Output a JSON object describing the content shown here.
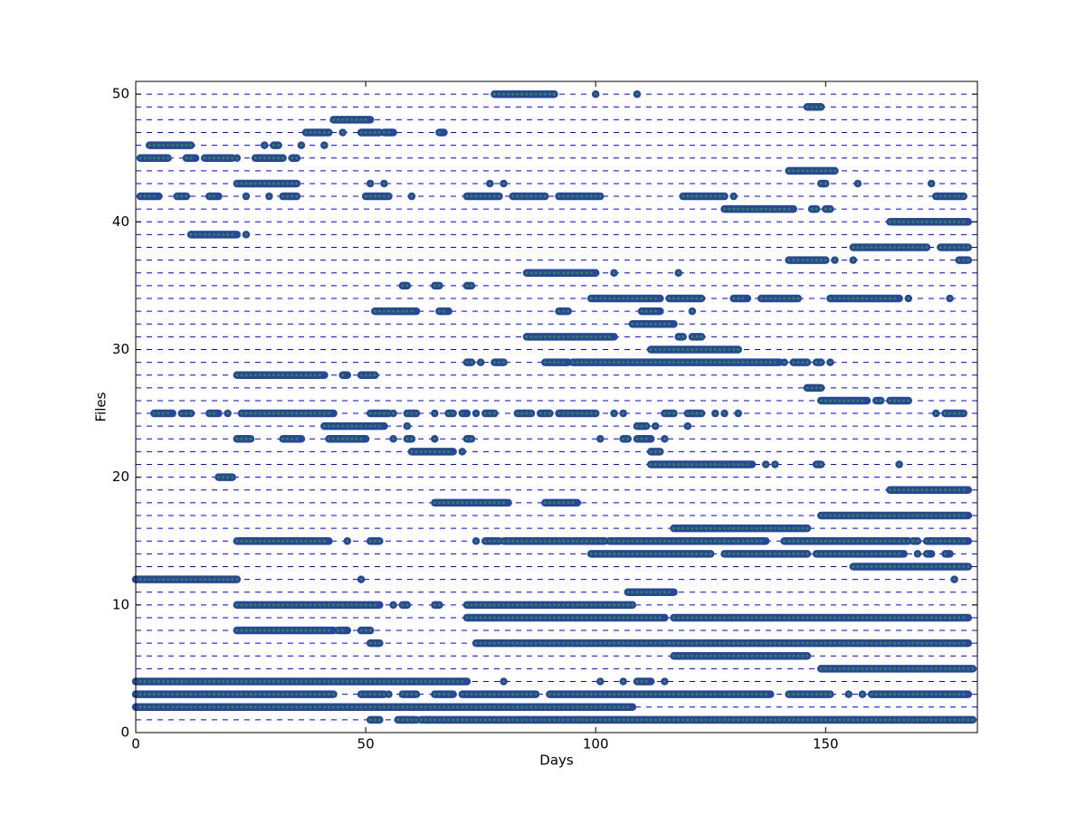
{
  "chart_data": {
    "type": "scatter",
    "xlabel": "Days",
    "ylabel": "Files",
    "xlim": [
      0,
      183
    ],
    "ylim": [
      0,
      51
    ],
    "xticks": [
      0,
      50,
      100,
      150
    ],
    "yticks": [
      0,
      10,
      20,
      30,
      40,
      50
    ],
    "hlines": [
      0,
      1,
      2,
      3,
      4,
      5,
      6,
      7,
      8,
      9,
      10,
      11,
      12,
      13,
      14,
      15,
      16,
      17,
      18,
      19,
      20,
      21,
      22,
      23,
      24,
      25,
      26,
      27,
      28,
      29,
      30,
      31,
      32,
      33,
      34,
      35,
      36,
      37,
      38,
      39,
      40,
      41,
      42,
      43,
      44,
      45,
      46,
      47,
      48,
      49,
      50
    ],
    "line_color": "#0000ff",
    "color": "#27479f",
    "inner_color": "#2e8b3a",
    "rows": [
      {
        "y": 50,
        "runs": [
          [
            78,
            91
          ],
          [
            100,
            100
          ],
          [
            109,
            109
          ]
        ]
      },
      {
        "y": 49,
        "runs": [
          [
            146,
            149
          ]
        ]
      },
      {
        "y": 48,
        "runs": [
          [
            43,
            51
          ]
        ]
      },
      {
        "y": 47,
        "runs": [
          [
            37,
            42
          ],
          [
            45,
            45
          ],
          [
            49,
            53
          ],
          [
            54,
            56
          ],
          [
            66,
            67
          ]
        ]
      },
      {
        "y": 46,
        "runs": [
          [
            3,
            12
          ],
          [
            28,
            28
          ],
          [
            30,
            31
          ],
          [
            36,
            36
          ],
          [
            41,
            41
          ]
        ]
      },
      {
        "y": 45,
        "runs": [
          [
            1,
            7
          ],
          [
            11,
            13
          ],
          [
            15,
            21
          ],
          [
            22,
            22
          ],
          [
            26,
            32
          ],
          [
            34,
            35
          ]
        ]
      },
      {
        "y": 44,
        "runs": [
          [
            142,
            152
          ]
        ]
      },
      {
        "y": 43,
        "runs": [
          [
            22,
            35
          ],
          [
            51,
            51
          ],
          [
            54,
            54
          ],
          [
            77,
            77
          ],
          [
            80,
            80
          ],
          [
            149,
            150
          ],
          [
            157,
            157
          ],
          [
            173,
            173
          ]
        ]
      },
      {
        "y": 42,
        "runs": [
          [
            1,
            5
          ],
          [
            9,
            11
          ],
          [
            16,
            18
          ],
          [
            24,
            24
          ],
          [
            29,
            29
          ],
          [
            32,
            35
          ],
          [
            50,
            55
          ],
          [
            60,
            60
          ],
          [
            72,
            79
          ],
          [
            82,
            89
          ],
          [
            92,
            101
          ],
          [
            119,
            128
          ],
          [
            130,
            130
          ],
          [
            174,
            180
          ]
        ]
      },
      {
        "y": 41,
        "runs": [
          [
            128,
            143
          ],
          [
            147,
            148
          ],
          [
            150,
            151
          ]
        ]
      },
      {
        "y": 40,
        "runs": [
          [
            164,
            181
          ]
        ]
      },
      {
        "y": 39,
        "runs": [
          [
            12,
            22
          ],
          [
            24,
            24
          ]
        ]
      },
      {
        "y": 38,
        "runs": [
          [
            156,
            172
          ],
          [
            175,
            181
          ]
        ]
      },
      {
        "y": 37,
        "runs": [
          [
            142,
            150
          ],
          [
            152,
            152
          ],
          [
            156,
            156
          ],
          [
            179,
            181
          ]
        ]
      },
      {
        "y": 36,
        "runs": [
          [
            85,
            100
          ],
          [
            104,
            104
          ],
          [
            118,
            118
          ]
        ]
      },
      {
        "y": 35,
        "runs": [
          [
            58,
            59
          ],
          [
            65,
            66
          ],
          [
            72,
            73
          ]
        ]
      },
      {
        "y": 34,
        "runs": [
          [
            99,
            114
          ],
          [
            116,
            123
          ],
          [
            130,
            133
          ],
          [
            136,
            144
          ],
          [
            151,
            166
          ],
          [
            168,
            168
          ],
          [
            177,
            177
          ]
        ]
      },
      {
        "y": 33,
        "runs": [
          [
            52,
            61
          ],
          [
            66,
            68
          ],
          [
            92,
            94
          ],
          [
            110,
            114
          ],
          [
            121,
            121
          ]
        ]
      },
      {
        "y": 32,
        "runs": [
          [
            108,
            117
          ]
        ]
      },
      {
        "y": 31,
        "runs": [
          [
            85,
            104
          ],
          [
            118,
            119
          ],
          [
            121,
            123
          ]
        ]
      },
      {
        "y": 30,
        "runs": [
          [
            112,
            131
          ]
        ]
      },
      {
        "y": 29,
        "runs": [
          [
            72,
            73
          ],
          [
            75,
            75
          ],
          [
            78,
            80
          ],
          [
            89,
            94
          ],
          [
            95,
            140
          ],
          [
            141,
            141
          ],
          [
            143,
            146
          ],
          [
            148,
            149
          ],
          [
            151,
            151
          ]
        ]
      },
      {
        "y": 28,
        "runs": [
          [
            22,
            41
          ],
          [
            45,
            46
          ],
          [
            49,
            52
          ]
        ]
      },
      {
        "y": 27,
        "runs": [
          [
            146,
            149
          ]
        ]
      },
      {
        "y": 26,
        "runs": [
          [
            149,
            159
          ],
          [
            161,
            162
          ],
          [
            164,
            168
          ]
        ]
      },
      {
        "y": 25,
        "runs": [
          [
            4,
            8
          ],
          [
            10,
            12
          ],
          [
            16,
            18
          ],
          [
            20,
            20
          ],
          [
            23,
            43
          ],
          [
            51,
            55
          ],
          [
            56,
            56
          ],
          [
            59,
            61
          ],
          [
            65,
            65
          ],
          [
            68,
            69
          ],
          [
            71,
            72
          ],
          [
            74,
            74
          ],
          [
            76,
            78
          ],
          [
            83,
            86
          ],
          [
            88,
            90
          ],
          [
            92,
            100
          ],
          [
            104,
            104
          ],
          [
            106,
            106
          ],
          [
            115,
            117
          ],
          [
            120,
            123
          ],
          [
            126,
            126
          ],
          [
            128,
            128
          ],
          [
            131,
            131
          ],
          [
            174,
            174
          ],
          [
            176,
            180
          ]
        ]
      },
      {
        "y": 24,
        "runs": [
          [
            41,
            54
          ],
          [
            59,
            59
          ],
          [
            109,
            111
          ],
          [
            113,
            113
          ],
          [
            120,
            120
          ]
        ]
      },
      {
        "y": 23,
        "runs": [
          [
            22,
            25
          ],
          [
            32,
            36
          ],
          [
            42,
            50
          ],
          [
            56,
            56
          ],
          [
            59,
            60
          ],
          [
            65,
            65
          ],
          [
            72,
            73
          ],
          [
            101,
            101
          ],
          [
            106,
            107
          ],
          [
            109,
            112
          ],
          [
            115,
            115
          ]
        ]
      },
      {
        "y": 22,
        "runs": [
          [
            60,
            69
          ],
          [
            71,
            71
          ],
          [
            112,
            114
          ]
        ]
      },
      {
        "y": 21,
        "runs": [
          [
            112,
            134
          ],
          [
            137,
            137
          ],
          [
            139,
            139
          ],
          [
            148,
            149
          ],
          [
            166,
            166
          ]
        ]
      },
      {
        "y": 20,
        "runs": [
          [
            18,
            21
          ]
        ]
      },
      {
        "y": 19,
        "runs": [
          [
            164,
            181
          ]
        ]
      },
      {
        "y": 18,
        "runs": [
          [
            65,
            81
          ],
          [
            89,
            96
          ]
        ]
      },
      {
        "y": 17,
        "runs": [
          [
            149,
            181
          ]
        ]
      },
      {
        "y": 16,
        "runs": [
          [
            117,
            146
          ]
        ]
      },
      {
        "y": 15,
        "runs": [
          [
            22,
            42
          ],
          [
            46,
            46
          ],
          [
            51,
            53
          ],
          [
            74,
            74
          ],
          [
            76,
            79
          ],
          [
            80,
            102
          ],
          [
            103,
            137
          ],
          [
            141,
            168
          ],
          [
            169,
            170
          ],
          [
            172,
            181
          ]
        ]
      },
      {
        "y": 14,
        "runs": [
          [
            99,
            125
          ],
          [
            128,
            146
          ],
          [
            148,
            167
          ],
          [
            170,
            170
          ],
          [
            172,
            173
          ],
          [
            176,
            177
          ]
        ]
      },
      {
        "y": 13,
        "runs": [
          [
            156,
            181
          ]
        ]
      },
      {
        "y": 12,
        "runs": [
          [
            0,
            22
          ],
          [
            49,
            49
          ],
          [
            178,
            178
          ]
        ]
      },
      {
        "y": 11,
        "runs": [
          [
            107,
            117
          ]
        ]
      },
      {
        "y": 10,
        "runs": [
          [
            22,
            53
          ],
          [
            56,
            56
          ],
          [
            58,
            59
          ],
          [
            65,
            66
          ],
          [
            72,
            108
          ]
        ]
      },
      {
        "y": 9,
        "runs": [
          [
            72,
            115
          ],
          [
            117,
            181
          ]
        ]
      },
      {
        "y": 8,
        "runs": [
          [
            22,
            43
          ],
          [
            44,
            46
          ],
          [
            49,
            51
          ]
        ]
      },
      {
        "y": 7,
        "runs": [
          [
            51,
            53
          ],
          [
            74,
            181
          ]
        ]
      },
      {
        "y": 6,
        "runs": [
          [
            117,
            146
          ]
        ]
      },
      {
        "y": 5,
        "runs": [
          [
            149,
            182
          ]
        ]
      },
      {
        "y": 4,
        "runs": [
          [
            0,
            72
          ],
          [
            80,
            80
          ],
          [
            101,
            101
          ],
          [
            106,
            106
          ],
          [
            109,
            112
          ],
          [
            115,
            115
          ]
        ]
      },
      {
        "y": 3,
        "runs": [
          [
            0,
            43
          ],
          [
            49,
            54
          ],
          [
            55,
            55
          ],
          [
            58,
            61
          ],
          [
            65,
            69
          ],
          [
            71,
            87
          ],
          [
            90,
            138
          ],
          [
            142,
            151
          ],
          [
            155,
            155
          ],
          [
            158,
            158
          ],
          [
            160,
            181
          ]
        ]
      },
      {
        "y": 2,
        "runs": [
          [
            0,
            108
          ]
        ]
      },
      {
        "y": 1,
        "runs": [
          [
            51,
            53
          ],
          [
            57,
            61
          ],
          [
            62,
            182
          ]
        ]
      }
    ]
  }
}
